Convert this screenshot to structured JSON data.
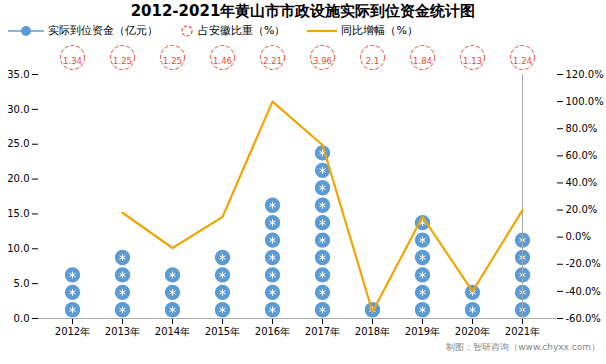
{
  "chart_data": {
    "type": "bar",
    "title": "2012-2021年黄山市市政设施实际到位资金统计图",
    "caption": "制图：智研咨询（www.chyxx.com）",
    "categories": [
      "2012年",
      "2013年",
      "2014年",
      "2015年",
      "2016年",
      "2017年",
      "2018年",
      "2019年",
      "2020年",
      "2021年"
    ],
    "series": [
      {
        "name": "实际到位资金（亿元）",
        "type": "bar",
        "marker": "circle",
        "color": "#5b9bd5",
        "values": [
          7.5,
          8.0,
          7.5,
          8.0,
          16.0,
          24.0,
          2.0,
          13.5,
          5.0,
          10.5
        ]
      },
      {
        "name": "占安徽比重（%）",
        "type": "text",
        "marker": "circle",
        "line_style": "dashed",
        "color": "#e74c3c",
        "data_labels": true,
        "values": [
          1.34,
          1.25,
          1.25,
          1.46,
          2.21,
          3.96,
          2.1,
          1.84,
          1.13,
          1.24
        ]
      },
      {
        "name": "同比增幅（%）",
        "type": "line",
        "axis": "y2",
        "color": "#f0a500",
        "values": [
          null,
          18.0,
          -8.0,
          15.0,
          100.0,
          68.0,
          -55.0,
          15.0,
          -40.0,
          20.0
        ]
      }
    ],
    "ylim": [
      0,
      35.0
    ],
    "yticks": [
      {
        "value": 0.0,
        "label": "0.0"
      },
      {
        "value": 5.0,
        "label": "5.0"
      },
      {
        "value": 10.0,
        "label": "10.0"
      },
      {
        "value": 15.0,
        "label": "15.0"
      },
      {
        "value": 20.0,
        "label": "20.0"
      },
      {
        "value": 25.0,
        "label": "25.0"
      },
      {
        "value": 30.0,
        "label": "30.0"
      },
      {
        "value": 35.0,
        "label": "35.0"
      }
    ],
    "y2lim": [
      -60,
      120
    ],
    "y2ticks": [
      {
        "value": -60.0,
        "label": "-60.0%"
      },
      {
        "value": -40.0,
        "label": "-40.0%"
      },
      {
        "value": -20.0,
        "label": "-20.0%"
      },
      {
        "value": 0.0,
        "label": "0.0%"
      },
      {
        "value": 20.0,
        "label": "20.0%"
      },
      {
        "value": 40.0,
        "label": "40.0%"
      },
      {
        "value": 60.0,
        "label": "60.0%"
      },
      {
        "value": 80.0,
        "label": "80.0%"
      },
      {
        "value": 100.0,
        "label": "100.0%"
      },
      {
        "value": 120.0,
        "label": "120.0%"
      }
    ],
    "grid": false,
    "legend": "top"
  }
}
